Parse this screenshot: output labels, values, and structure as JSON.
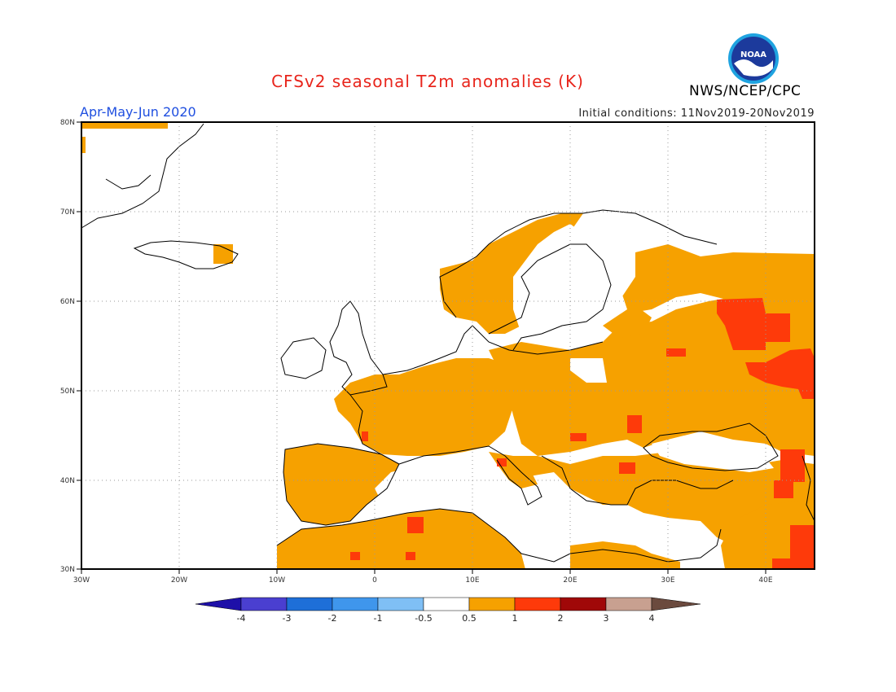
{
  "header": {
    "title": "CFSv2 seasonal T2m anomalies (K)",
    "period": "Apr-May-Jun 2020",
    "initial_conditions": "Initial conditions: 11Nov2019-20Nov2019",
    "agency": "NWS/NCEP/CPC",
    "logo_text": "NOAA"
  },
  "map": {
    "lon_range": [
      -30,
      45
    ],
    "lat_range": [
      30,
      80
    ],
    "lon_labels": [
      "30W",
      "20W",
      "10W",
      "0",
      "10E",
      "20E",
      "30E",
      "40E"
    ],
    "lat_labels": [
      "30N",
      "40N",
      "50N",
      "60N",
      "70N",
      "80N"
    ]
  },
  "colorbar": {
    "labels": [
      "-4",
      "-3",
      "-2",
      "-1",
      "-0.5",
      "0.5",
      "1",
      "2",
      "3",
      "4"
    ],
    "colors": [
      "#1e10a8",
      "#4a3fd0",
      "#1e6fd8",
      "#3f96ec",
      "#7fbff5",
      "#ffffff",
      "#f6a100",
      "#fe3a0a",
      "#a00808",
      "#c8a090",
      "#6b4a3e"
    ]
  },
  "colors": {
    "warm": "#f6a100",
    "hot": "#fe3a0a",
    "coast": "#000000"
  }
}
